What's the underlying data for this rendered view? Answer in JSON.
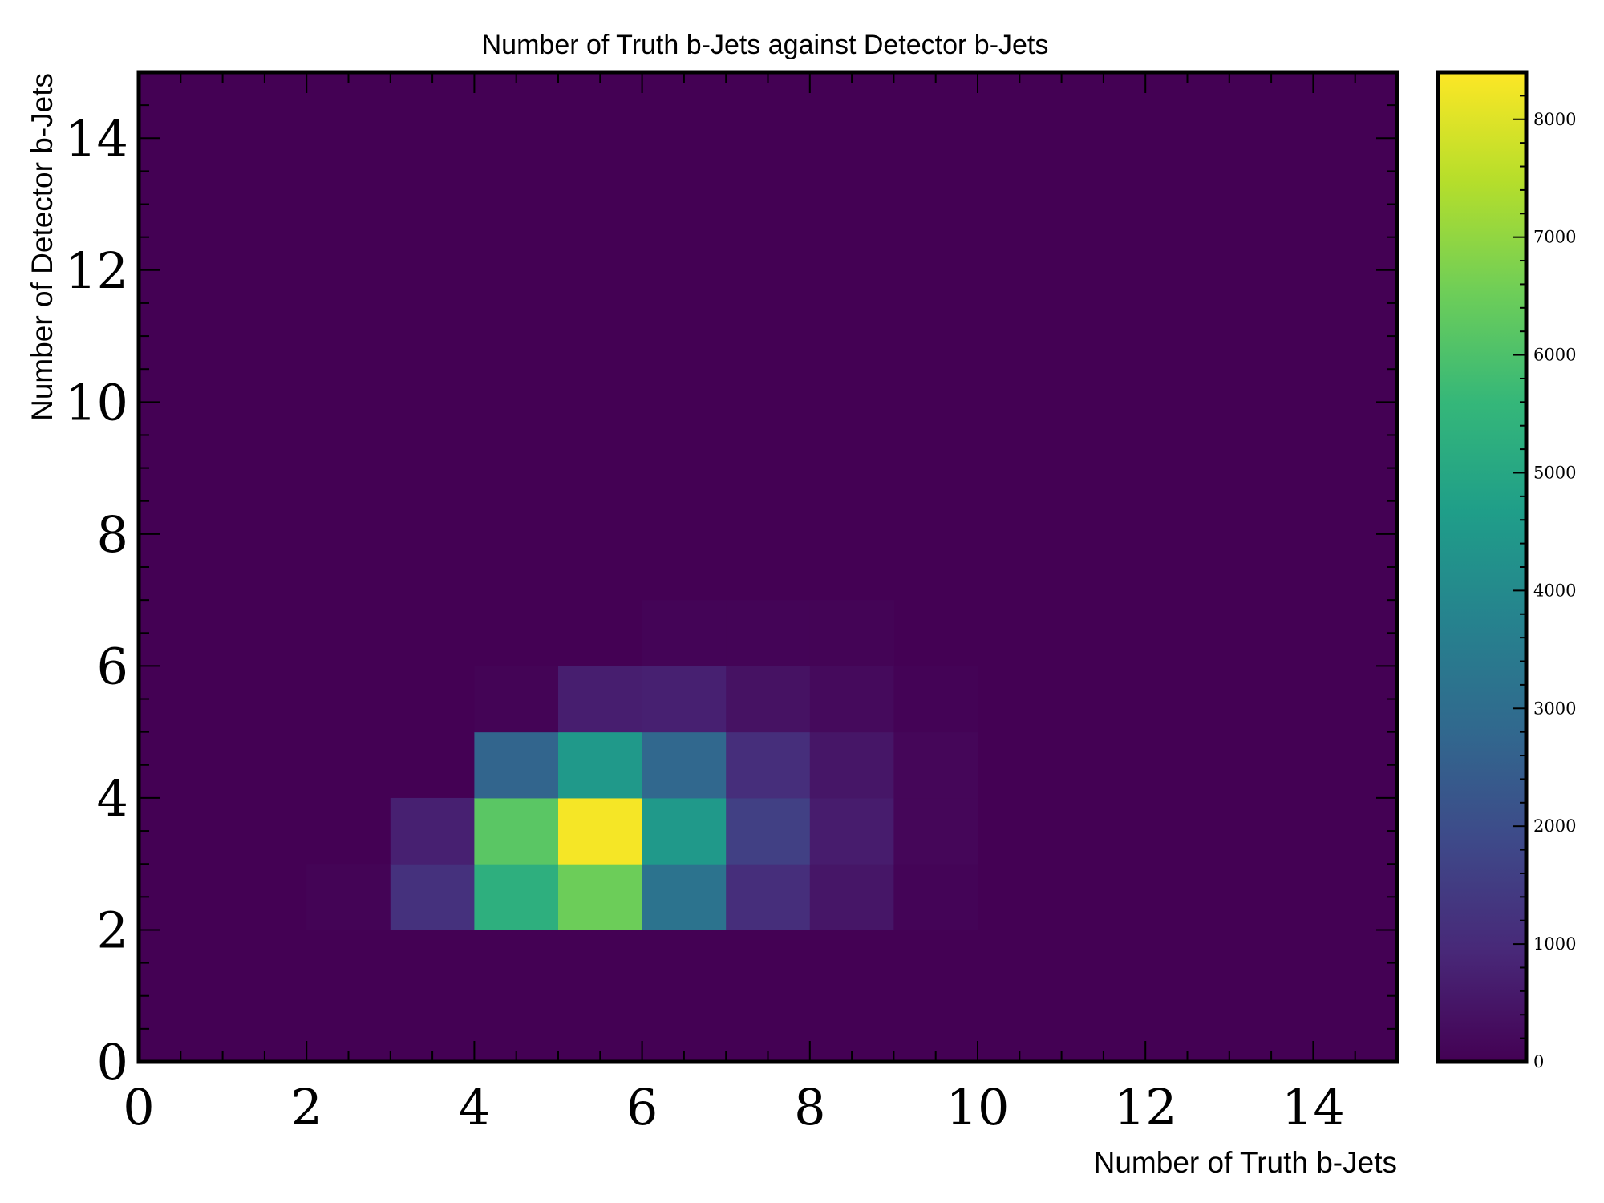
{
  "chart_data": {
    "type": "heatmap",
    "title": "Number of Truth b-Jets against Detector b-Jets",
    "xlabel": "Number of Truth b-Jets",
    "ylabel": "Number of Detector b-Jets",
    "xlim": [
      0,
      15
    ],
    "ylim": [
      0,
      15
    ],
    "x_bin_width": 1,
    "y_bin_width": 1,
    "x_ticks": [
      0,
      2,
      4,
      6,
      8,
      10,
      12,
      14
    ],
    "y_ticks": [
      0,
      2,
      4,
      6,
      8,
      10,
      12,
      14
    ],
    "colormap": "viridis",
    "colorbar": {
      "range": [
        0,
        8400
      ],
      "ticks": [
        0,
        1000,
        2000,
        3000,
        4000,
        5000,
        6000,
        7000,
        8000
      ]
    },
    "background_value": 0,
    "cells": [
      {
        "x": 2,
        "y": 2,
        "value": 60
      },
      {
        "x": 3,
        "y": 2,
        "value": 1200
      },
      {
        "x": 4,
        "y": 2,
        "value": 5300
      },
      {
        "x": 5,
        "y": 2,
        "value": 6500
      },
      {
        "x": 6,
        "y": 2,
        "value": 3200
      },
      {
        "x": 7,
        "y": 2,
        "value": 1100
      },
      {
        "x": 8,
        "y": 2,
        "value": 500
      },
      {
        "x": 9,
        "y": 2,
        "value": 80
      },
      {
        "x": 3,
        "y": 3,
        "value": 750
      },
      {
        "x": 4,
        "y": 3,
        "value": 6200
      },
      {
        "x": 5,
        "y": 3,
        "value": 8300
      },
      {
        "x": 6,
        "y": 3,
        "value": 4500
      },
      {
        "x": 7,
        "y": 3,
        "value": 1600
      },
      {
        "x": 8,
        "y": 3,
        "value": 650
      },
      {
        "x": 9,
        "y": 3,
        "value": 120
      },
      {
        "x": 4,
        "y": 4,
        "value": 2700
      },
      {
        "x": 5,
        "y": 4,
        "value": 4500
      },
      {
        "x": 6,
        "y": 4,
        "value": 2800
      },
      {
        "x": 7,
        "y": 4,
        "value": 1100
      },
      {
        "x": 8,
        "y": 4,
        "value": 500
      },
      {
        "x": 9,
        "y": 4,
        "value": 120
      },
      {
        "x": 4,
        "y": 5,
        "value": 60
      },
      {
        "x": 5,
        "y": 5,
        "value": 700
      },
      {
        "x": 6,
        "y": 5,
        "value": 750
      },
      {
        "x": 7,
        "y": 5,
        "value": 400
      },
      {
        "x": 8,
        "y": 5,
        "value": 220
      },
      {
        "x": 9,
        "y": 5,
        "value": 40
      },
      {
        "x": 6,
        "y": 6,
        "value": 80
      },
      {
        "x": 7,
        "y": 6,
        "value": 80
      },
      {
        "x": 8,
        "y": 6,
        "value": 60
      }
    ]
  }
}
